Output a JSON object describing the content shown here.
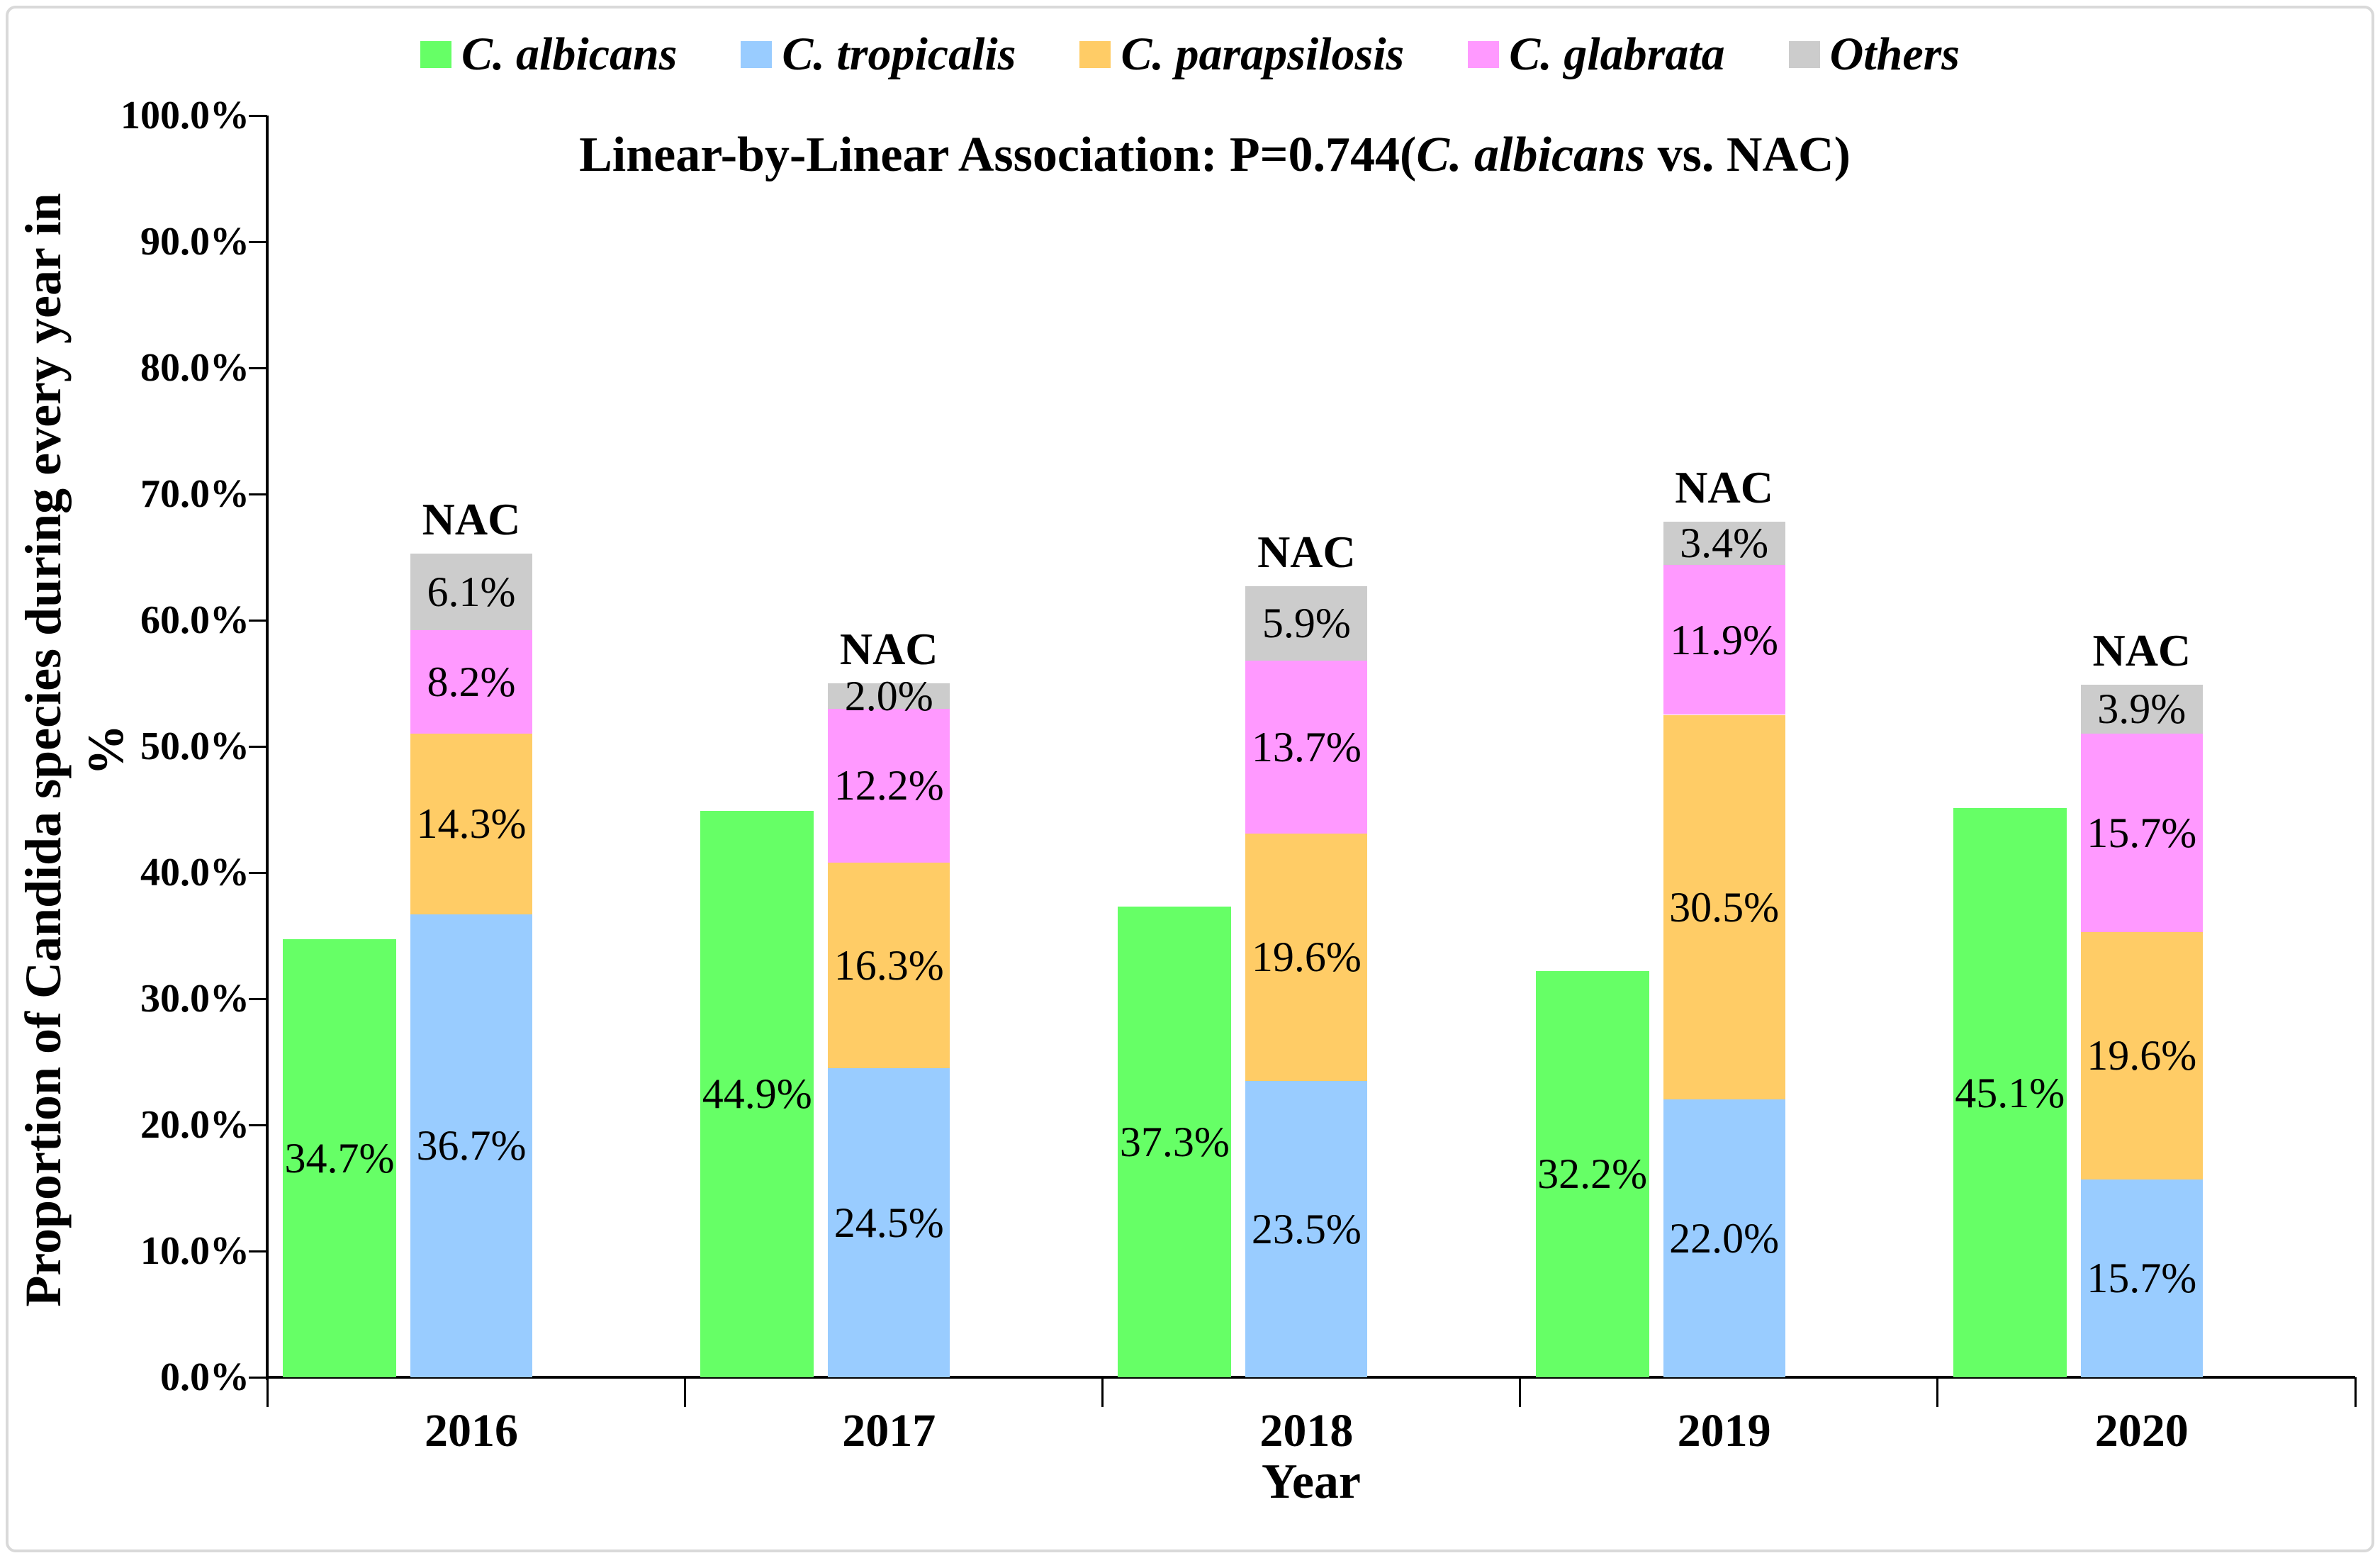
{
  "figure": {
    "title": {
      "prefix": "Linear-by-Linear Association: P=0.744(",
      "italic_part": "C. albicans",
      "suffix": " vs. NAC)"
    },
    "y_axis": {
      "title": "Proportion of Candida species during every year in",
      "title_unit": "%"
    },
    "nac_label": "NAC",
    "border_color": "#d9d9d9"
  },
  "chart_data": {
    "type": "bar",
    "subtype": "grouped-with-stacked-NAC-bar",
    "title": "Linear-by-Linear Association: P=0.744(C. albicans vs. NAC)",
    "xlabel": "Year",
    "ylabel": "Proportion of Candida species during every year in %",
    "ylim": [
      0,
      100
    ],
    "ytick_step": 10,
    "ytick_format": "one-decimal-percent",
    "grid": false,
    "legend_position": "top",
    "axis_color": "#000000",
    "categories": [
      "2016",
      "2017",
      "2018",
      "2019",
      "2020"
    ],
    "stack_label": "NAC",
    "series": [
      {
        "name": "C. albicans",
        "color": "#66FF66",
        "stack": null,
        "values": [
          34.7,
          44.9,
          37.3,
          32.2,
          45.1
        ]
      },
      {
        "name": "C. tropicalis",
        "color": "#99CCFF",
        "stack": "NAC",
        "values": [
          36.7,
          24.5,
          23.5,
          22.0,
          15.7
        ]
      },
      {
        "name": "C. parapsilosis",
        "color": "#FFCC66",
        "stack": "NAC",
        "values": [
          14.3,
          16.3,
          19.6,
          30.5,
          19.6
        ]
      },
      {
        "name": "C. glabrata",
        "color": "#FF99FF",
        "stack": "NAC",
        "values": [
          8.2,
          12.2,
          13.7,
          11.9,
          15.7
        ]
      },
      {
        "name": "Others",
        "color": "#CCCCCC",
        "stack": "NAC",
        "values": [
          6.1,
          2.0,
          5.9,
          3.4,
          3.9
        ]
      }
    ]
  }
}
